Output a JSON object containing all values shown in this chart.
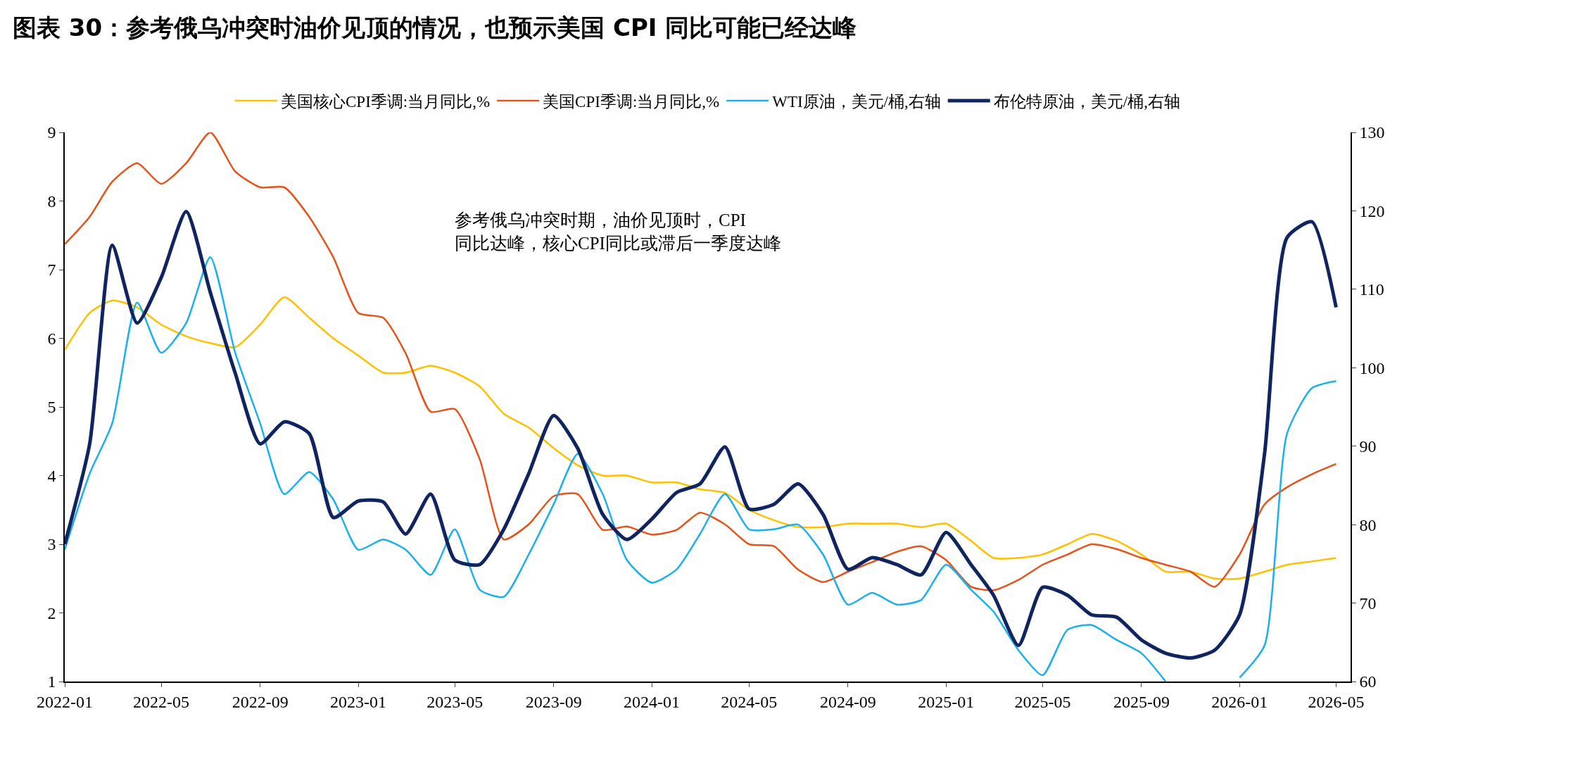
{
  "chart_data": {
    "type": "line",
    "title": "图表 30：参考俄乌冲突时油价见顶的情况，也预示美国 CPI 同比可能已经达峰",
    "x": [
      "2022-01",
      "2022-02",
      "2022-03",
      "2022-04",
      "2022-05",
      "2022-06",
      "2022-07",
      "2022-08",
      "2022-09",
      "2022-10",
      "2022-11",
      "2022-12",
      "2023-01",
      "2023-02",
      "2023-03",
      "2023-04",
      "2023-05",
      "2023-06",
      "2023-07",
      "2023-08",
      "2023-09",
      "2023-10",
      "2023-11",
      "2023-12",
      "2024-01",
      "2024-02",
      "2024-03",
      "2024-04",
      "2024-05",
      "2024-06",
      "2024-07",
      "2024-08",
      "2024-09",
      "2024-10",
      "2024-11",
      "2024-12",
      "2025-01",
      "2025-02",
      "2025-03",
      "2025-04",
      "2025-05",
      "2025-06",
      "2025-07",
      "2025-08",
      "2025-09",
      "2025-10",
      "2025-11",
      "2025-12",
      "2026-01",
      "2026-02",
      "2026-03",
      "2026-04",
      "2026-05"
    ],
    "series": [
      {
        "name": "美国核心CPI季调:当月同比,%",
        "color": "#ffc000",
        "values": [
          5.83,
          6.37,
          6.55,
          6.45,
          6.2,
          6.03,
          5.93,
          5.87,
          6.2,
          6.6,
          6.3,
          6.0,
          5.75,
          5.5,
          5.5,
          5.6,
          5.5,
          5.3,
          4.9,
          4.7,
          4.4,
          4.15,
          4.0,
          4.0,
          3.9,
          3.9,
          3.8,
          3.75,
          3.5,
          3.35,
          3.25,
          3.25,
          3.3,
          3.3,
          3.3,
          3.25,
          3.3,
          3.05,
          2.8,
          2.8,
          2.85,
          3.0,
          3.15,
          3.05,
          2.85,
          2.6,
          2.6,
          2.5,
          2.5,
          2.6,
          2.7,
          2.75,
          2.8
        ]
      },
      {
        "name": "美国CPI季调:当月同比,%",
        "color": "#e5531a",
        "values": [
          7.37,
          7.77,
          8.28,
          8.55,
          8.25,
          8.55,
          9.0,
          8.43,
          8.2,
          8.2,
          7.77,
          7.18,
          6.37,
          6.3,
          5.78,
          4.93,
          4.97,
          4.24,
          3.07,
          3.29,
          3.7,
          3.73,
          3.21,
          3.26,
          3.14,
          3.21,
          3.46,
          3.29,
          3.0,
          2.97,
          2.63,
          2.45,
          2.6,
          2.74,
          2.89,
          2.97,
          2.77,
          2.38,
          2.33,
          2.48,
          2.7,
          2.85,
          3.0,
          2.93,
          2.8,
          2.7,
          2.6,
          2.38,
          2.85,
          3.58,
          3.83,
          4.02,
          4.17
        ]
      },
      {
        "name": "WTI原油，美元/桶,右轴",
        "color": "#1ab0ec",
        "axis": "y2",
        "values": [
          76.8,
          86.5,
          92.9,
          108.3,
          101.9,
          105.7,
          114.1,
          101.9,
          92.9,
          83.9,
          86.7,
          83.2,
          76.8,
          78.1,
          76.8,
          73.6,
          79.4,
          71.7,
          70.8,
          76.2,
          82.6,
          89.0,
          83.9,
          75.5,
          72.6,
          74.3,
          78.8,
          83.9,
          79.4,
          79.4,
          80.0,
          76.2,
          69.8,
          71.3,
          69.8,
          70.4,
          74.9,
          71.7,
          68.9,
          64.0,
          60.8,
          66.6,
          67.2,
          65.3,
          63.6,
          60.0,
          null,
          null,
          60.5,
          64.6,
          91.6,
          97.4,
          98.3
        ]
      },
      {
        "name": "布伦特原油，美元/桶,右轴",
        "color": "#0f2460",
        "axis": "y2",
        "values": [
          77.5,
          90.3,
          115.6,
          105.7,
          111.5,
          119.9,
          109.6,
          99.3,
          90.3,
          93.1,
          91.6,
          80.9,
          83.0,
          82.9,
          78.8,
          83.9,
          75.5,
          74.9,
          79.4,
          86.5,
          93.9,
          89.7,
          81.3,
          78.1,
          80.7,
          84.1,
          85.2,
          89.9,
          82.0,
          82.6,
          85.2,
          81.3,
          74.3,
          75.8,
          74.9,
          73.6,
          79.0,
          74.9,
          71.0,
          64.6,
          72.0,
          71.0,
          68.5,
          68.2,
          65.3,
          63.6,
          63.0,
          64.0,
          68.5,
          89.0,
          116.6,
          118.6,
          107.7
        ]
      }
    ],
    "xlim": [
      "2022-01",
      "2026-05-19"
    ],
    "xticks": [
      {
        "value": "2022-01",
        "label": "2022-01"
      },
      {
        "value": "2022-05",
        "label": "2022-05"
      },
      {
        "value": "2022-09",
        "label": "2022-09"
      },
      {
        "value": "2023-01",
        "label": "2023-01"
      },
      {
        "value": "2023-05",
        "label": "2023-05"
      },
      {
        "value": "2023-09",
        "label": "2023-09"
      },
      {
        "value": "2024-01",
        "label": "2024-01"
      },
      {
        "value": "2024-05",
        "label": "2024-05"
      },
      {
        "value": "2024-09",
        "label": "2024-09"
      },
      {
        "value": "2025-01",
        "label": "2025-01"
      },
      {
        "value": "2025-05",
        "label": "2025-05"
      },
      {
        "value": "2025-09",
        "label": "2025-09"
      },
      {
        "value": "2026-01",
        "label": "2026-01"
      },
      {
        "value": "2026-05",
        "label": "2026-05"
      }
    ],
    "ylim": [
      1,
      9
    ],
    "yticks": [
      1,
      2,
      3,
      4,
      5,
      6,
      7,
      8,
      9
    ],
    "y2lim": [
      60,
      130
    ],
    "y2ticks": [
      60,
      70,
      80,
      90,
      100,
      110,
      120,
      130
    ],
    "annotations": [
      "参考俄乌冲突时期，油价见顶时，CPI\n同比达峰，核心CPI同比或滞后一季度达峰"
    ],
    "legend": "top"
  }
}
